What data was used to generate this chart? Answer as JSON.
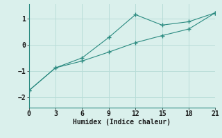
{
  "xlabel": "Humidex (Indice chaleur)",
  "background_color": "#daf0ec",
  "grid_color": "#b8ddd8",
  "line_color": "#2a8a80",
  "xlim": [
    0,
    21
  ],
  "ylim": [
    -2.4,
    1.55
  ],
  "xticks": [
    0,
    3,
    6,
    9,
    12,
    15,
    18,
    21
  ],
  "yticks": [
    -2,
    -1,
    0,
    1
  ],
  "line1_x": [
    0,
    3,
    6,
    9,
    12,
    15,
    18,
    21
  ],
  "line1_y": [
    -1.75,
    -0.88,
    -0.5,
    0.28,
    1.15,
    0.75,
    0.88,
    1.22
  ],
  "line2_x": [
    0,
    3,
    6,
    9,
    12,
    15,
    18,
    21
  ],
  "line2_y": [
    -1.75,
    -0.88,
    -0.62,
    -0.28,
    0.08,
    0.35,
    0.6,
    1.22
  ]
}
